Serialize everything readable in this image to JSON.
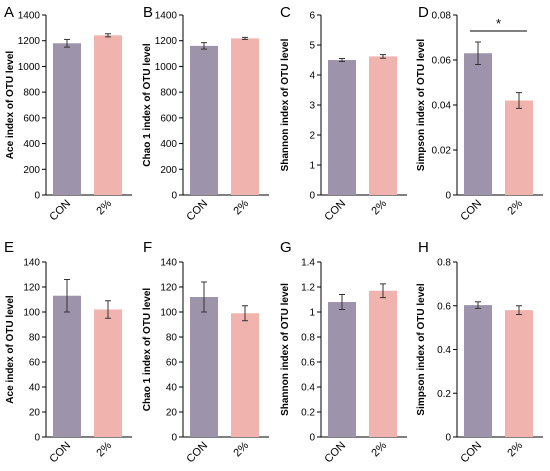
{
  "colors": {
    "con": "#9d93ab",
    "pct2": "#f0b3ae",
    "axis": "#000000"
  },
  "chart_data": [
    {
      "panel": "A",
      "type": "bar",
      "categories": [
        "CON",
        "2%"
      ],
      "values": [
        1180,
        1242
      ],
      "errors": [
        30,
        12
      ],
      "ylabel": "Ace index of OTU level",
      "ylim": [
        0,
        1400
      ],
      "yticks": [
        0,
        200,
        400,
        600,
        800,
        1000,
        1200,
        1400
      ],
      "ytick_labels": [
        "0",
        "200",
        "400",
        "600",
        "800",
        "1000",
        "1200",
        "1400"
      ],
      "significance": ""
    },
    {
      "panel": "B",
      "type": "bar",
      "categories": [
        "CON",
        "2%"
      ],
      "values": [
        1160,
        1218
      ],
      "errors": [
        25,
        8
      ],
      "ylabel": "Chao 1 index of OTU level",
      "ylim": [
        0,
        1400
      ],
      "yticks": [
        0,
        200,
        400,
        600,
        800,
        1000,
        1200,
        1400
      ],
      "ytick_labels": [
        "0",
        "200",
        "400",
        "600",
        "800",
        "1000",
        "1200",
        "1400"
      ],
      "significance": ""
    },
    {
      "panel": "C",
      "type": "bar",
      "categories": [
        "CON",
        "2%"
      ],
      "values": [
        4.5,
        4.62
      ],
      "errors": [
        0.05,
        0.06
      ],
      "ylabel": "Shannon index of OTU level",
      "ylim": [
        0,
        6
      ],
      "yticks": [
        0,
        1,
        2,
        3,
        4,
        5,
        6
      ],
      "ytick_labels": [
        "0",
        "1",
        "2",
        "3",
        "4",
        "5",
        "6"
      ],
      "significance": ""
    },
    {
      "panel": "D",
      "type": "bar",
      "categories": [
        "CON",
        "2%"
      ],
      "values": [
        0.063,
        0.042
      ],
      "errors": [
        0.005,
        0.0035
      ],
      "ylabel": "Simpson index of OTU level",
      "ylim": [
        0,
        0.08
      ],
      "yticks": [
        0,
        0.02,
        0.04,
        0.06,
        0.08
      ],
      "ytick_labels": [
        "0",
        "0.02",
        "0.04",
        "0.06",
        "0.08"
      ],
      "significance": "*"
    },
    {
      "panel": "E",
      "type": "bar",
      "categories": [
        "CON",
        "2%"
      ],
      "values": [
        113,
        102
      ],
      "errors": [
        13,
        7
      ],
      "ylabel": "Ace index of OTU level",
      "ylim": [
        0,
        140
      ],
      "yticks": [
        0,
        20,
        40,
        60,
        80,
        100,
        120,
        140
      ],
      "ytick_labels": [
        "0",
        "20",
        "40",
        "60",
        "80",
        "100",
        "120",
        "140"
      ],
      "significance": ""
    },
    {
      "panel": "F",
      "type": "bar",
      "categories": [
        "CON",
        "2%"
      ],
      "values": [
        112,
        99
      ],
      "errors": [
        12,
        6
      ],
      "ylabel": "Chao 1 index of OTU level",
      "ylim": [
        0,
        140
      ],
      "yticks": [
        0,
        20,
        40,
        60,
        80,
        100,
        120,
        140
      ],
      "ytick_labels": [
        "0",
        "20",
        "40",
        "60",
        "80",
        "100",
        "120",
        "140"
      ],
      "significance": ""
    },
    {
      "panel": "G",
      "type": "bar",
      "categories": [
        "CON",
        "2%"
      ],
      "values": [
        1.08,
        1.17
      ],
      "errors": [
        0.06,
        0.055
      ],
      "ylabel": "Shannon index of OTU level",
      "ylim": [
        0,
        1.4
      ],
      "yticks": [
        0,
        0.2,
        0.4,
        0.6,
        0.8,
        1,
        1.2,
        1.4
      ],
      "ytick_labels": [
        "0",
        "0.2",
        "0.4",
        "0.6",
        "0.8",
        "1",
        "1.2",
        "1.4"
      ],
      "significance": ""
    },
    {
      "panel": "H",
      "type": "bar",
      "categories": [
        "CON",
        "2%"
      ],
      "values": [
        0.603,
        0.58
      ],
      "errors": [
        0.015,
        0.02
      ],
      "ylabel": "Simpson index of OTU level",
      "ylim": [
        0,
        0.8
      ],
      "yticks": [
        0,
        0.2,
        0.4,
        0.6,
        0.8
      ],
      "ytick_labels": [
        "0",
        "0.2",
        "0.4",
        "0.6",
        "0.8"
      ],
      "significance": ""
    }
  ]
}
